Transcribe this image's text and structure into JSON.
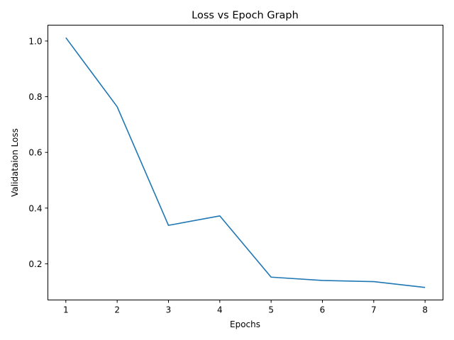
{
  "chart_data": {
    "type": "line",
    "title": "Loss vs Epoch Graph",
    "xlabel": "Epochs",
    "ylabel": "Validataion Loss",
    "x": [
      1,
      2,
      3,
      4,
      5,
      6,
      7,
      8
    ],
    "series": [
      {
        "values": [
          1.012,
          0.764,
          0.338,
          0.372,
          0.152,
          0.14,
          0.136,
          0.115
        ],
        "color": "#1f77b4"
      }
    ],
    "xlim": [
      0.65,
      8.35
    ],
    "ylim": [
      0.07,
      1.057
    ],
    "xticks": [
      "1",
      "2",
      "3",
      "4",
      "5",
      "6",
      "7",
      "8"
    ],
    "yticks": [
      "0.2",
      "0.4",
      "0.6",
      "0.8",
      "1.0"
    ],
    "grid": false,
    "legend": "none"
  }
}
